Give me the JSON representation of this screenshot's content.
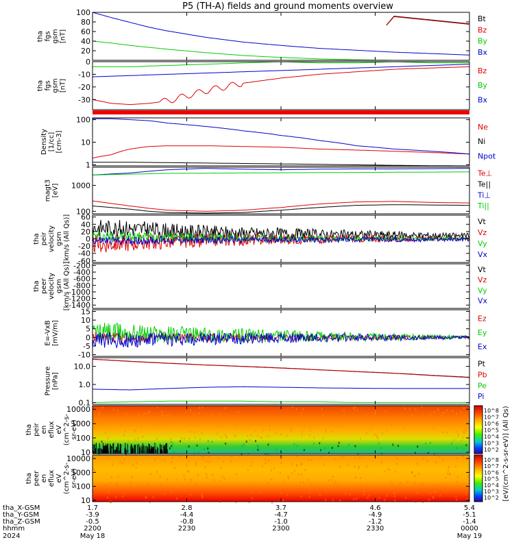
{
  "title": "P5 (TH-A) fields and ground moments overview",
  "colors": {
    "black": "#000000",
    "red": "#dd0000",
    "green": "#00cc00",
    "blue": "#0000cc"
  },
  "chart_data": [
    {
      "type": "line",
      "id": "panel1",
      "ylabel": [
        "tha",
        "fgs",
        "gsm",
        "[nT]"
      ],
      "ylim": [
        0,
        100
      ],
      "yticks": [
        "100",
        "80",
        "60",
        "40",
        "20"
      ],
      "ytick_values": [
        100,
        80,
        60,
        40,
        20
      ],
      "series": [
        {
          "name": "Bt",
          "color": "black",
          "x": [
            0,
            0.1,
            0.2,
            0.3,
            0.4,
            0.5,
            0.6,
            0.7,
            0.8,
            0.9,
            1.0
          ],
          "values": [
            0,
            0,
            0,
            0,
            0,
            0,
            0,
            0,
            92,
            84,
            76
          ]
        },
        {
          "name": "Bz",
          "color": "red",
          "x": [
            0,
            0.1,
            0.2,
            0.3,
            0.4,
            0.5,
            0.6,
            0.7,
            0.8,
            0.9,
            1.0
          ],
          "values": [
            0,
            0,
            0,
            0,
            0,
            0,
            0,
            0,
            91,
            83,
            75
          ]
        },
        {
          "name": "By",
          "color": "green",
          "x": [
            0,
            0.05,
            0.1,
            0.2,
            0.3,
            0.4,
            0.5,
            0.6,
            0.7,
            0.8,
            0.9,
            1.0
          ],
          "values": [
            40,
            36,
            31,
            23,
            16,
            10,
            6,
            3,
            1,
            0,
            0,
            0
          ]
        },
        {
          "name": "Bx",
          "color": "blue",
          "x": [
            0,
            0.05,
            0.1,
            0.15,
            0.2,
            0.3,
            0.4,
            0.5,
            0.6,
            0.7,
            0.8,
            0.9,
            1.0
          ],
          "values": [
            100,
            89,
            79,
            69,
            61,
            48,
            38,
            31,
            25,
            21,
            17,
            14,
            11
          ]
        }
      ]
    },
    {
      "type": "line",
      "id": "panel2",
      "ylabel": [
        "tha",
        "fgs",
        "gsm",
        "[nT]"
      ],
      "ylim": [
        -38,
        0
      ],
      "yticks": [
        "0",
        "-10",
        "-20",
        "-30"
      ],
      "ytick_values": [
        0,
        -10,
        -20,
        -30
      ],
      "series": [
        {
          "name": "Bz",
          "color": "red",
          "x": [
            0,
            0.05,
            0.1,
            0.15,
            0.2,
            0.25,
            0.3,
            0.35,
            0.4,
            0.5,
            0.6,
            0.7,
            0.8,
            0.9,
            1.0
          ],
          "values": [
            -30,
            -33,
            -34,
            -33,
            -31,
            -27,
            -23,
            -20,
            -17,
            -13,
            -10,
            -8,
            -6,
            -5,
            -4
          ]
        },
        {
          "name": "By",
          "color": "green",
          "x": [
            0,
            0.1,
            0.2,
            0.3,
            0.4,
            0.5,
            0.6,
            0.7,
            0.8,
            0.9,
            1.0
          ],
          "values": [
            -4,
            -4,
            -3,
            -2,
            -1,
            0,
            -1,
            -1,
            0,
            -1,
            -1
          ]
        },
        {
          "name": "Bx",
          "color": "blue",
          "x": [
            0,
            0.1,
            0.2,
            0.3,
            0.4,
            0.5,
            0.6,
            0.7,
            0.8,
            0.9,
            1.0
          ],
          "values": [
            -12,
            -11,
            -10,
            -9,
            -8,
            -7,
            -6,
            -5,
            -4,
            -3,
            -2
          ]
        }
      ]
    },
    {
      "type": "line",
      "id": "panel3",
      "log": true,
      "ylabel": [
        "Density",
        "[1/cc]",
        "[cm-3]"
      ],
      "ylim": [
        0.9,
        120
      ],
      "yticks": [
        "100",
        "10",
        "1"
      ],
      "ytick_values": [
        100,
        10,
        1
      ],
      "series": [
        {
          "name": "Ne",
          "color": "red",
          "x": [
            0,
            0.05,
            0.1,
            0.15,
            0.2,
            0.3,
            0.4,
            0.5,
            0.6,
            0.7,
            0.8,
            0.9,
            1.0
          ],
          "values": [
            2,
            2.8,
            5,
            6.5,
            7,
            7,
            6.5,
            6,
            5,
            4.5,
            4,
            3.5,
            3
          ]
        },
        {
          "name": "Ni",
          "color": "black",
          "x": [
            0,
            0.1,
            0.2,
            0.3,
            0.4,
            0.5,
            0.6,
            0.7,
            0.8,
            0.9,
            1.0
          ],
          "values": [
            1.3,
            1.3,
            1.25,
            1.2,
            1.15,
            1.1,
            1.05,
            1.0,
            0.95,
            0.92,
            0.9
          ]
        },
        {
          "name": "Npot",
          "color": "blue",
          "x": [
            0,
            0.05,
            0.1,
            0.15,
            0.2,
            0.3,
            0.4,
            0.5,
            0.6,
            0.7,
            0.8,
            0.9,
            1.0
          ],
          "values": [
            110,
            110,
            100,
            90,
            70,
            50,
            32,
            20,
            12,
            7,
            5,
            4,
            3
          ]
        }
      ]
    },
    {
      "type": "line",
      "id": "panel4",
      "log": true,
      "ylabel": [
        "magt3",
        "[eV]"
      ],
      "ylim": [
        80,
        5000
      ],
      "yticks": [
        "1000",
        "100"
      ],
      "ytick_values": [
        1000,
        100
      ],
      "series": [
        {
          "name": "Te⊥",
          "color": "red",
          "x": [
            0,
            0.05,
            0.1,
            0.15,
            0.2,
            0.3,
            0.4,
            0.5,
            0.6,
            0.7,
            0.8,
            0.9,
            1.0
          ],
          "values": [
            250,
            200,
            160,
            130,
            110,
            100,
            110,
            140,
            190,
            230,
            240,
            220,
            210
          ]
        },
        {
          "name": "Te||",
          "color": "black",
          "x": [
            0,
            0.05,
            0.1,
            0.15,
            0.2,
            0.3,
            0.4,
            0.5,
            0.6,
            0.7,
            0.8,
            0.9,
            1.0
          ],
          "values": [
            160,
            140,
            120,
            100,
            90,
            85,
            90,
            110,
            140,
            170,
            180,
            175,
            170
          ]
        },
        {
          "name": "Ti⊥",
          "color": "blue",
          "x": [
            0,
            0.1,
            0.2,
            0.3,
            0.4,
            0.5,
            0.6,
            0.7,
            0.8,
            0.9,
            1.0
          ],
          "values": [
            2500,
            3000,
            4000,
            4500,
            4200,
            4000,
            4200,
            4300,
            4300,
            4400,
            4500
          ]
        },
        {
          "name": "Ti||",
          "color": "green",
          "x": [
            0,
            0.1,
            0.2,
            0.3,
            0.4,
            0.5,
            0.6,
            0.7,
            0.8,
            0.9,
            1.0
          ],
          "values": [
            2500,
            2700,
            2900,
            2950,
            3000,
            3050,
            3100,
            3150,
            3200,
            3250,
            3300
          ]
        }
      ]
    },
    {
      "type": "line",
      "id": "panel5",
      "ylabel": [
        "tha",
        "peir",
        "velocity",
        "gsm",
        "[km/s (All Qs)]"
      ],
      "ylim": [
        -65,
        65
      ],
      "yticks": [
        "60",
        "40",
        "20",
        "0",
        "-20",
        "-40",
        "-60"
      ],
      "ytick_values": [
        60,
        40,
        20,
        0,
        -20,
        -40,
        -60
      ],
      "series": [
        {
          "name": "Vt",
          "color": "black",
          "noise": [
            25,
            8
          ],
          "x": [
            0,
            0.1,
            0.2,
            0.3,
            0.4,
            0.5,
            0.6,
            0.7,
            0.8,
            0.9,
            1.0
          ],
          "values": [
            30,
            28,
            22,
            18,
            15,
            14,
            12,
            11,
            10,
            9,
            8
          ]
        },
        {
          "name": "Vz",
          "color": "red",
          "noise": [
            25,
            4
          ],
          "x": [
            0,
            0.1,
            0.2,
            0.3,
            0.4,
            0.5,
            0.6,
            0.7,
            0.8,
            0.9,
            1.0
          ],
          "values": [
            -15,
            -12,
            -8,
            -5,
            -3,
            -2,
            -1,
            0,
            0,
            0,
            0
          ]
        },
        {
          "name": "Vy",
          "color": "green",
          "noise": [
            15,
            4
          ],
          "x": [
            0,
            0.1,
            0.2,
            0.3,
            0.4,
            0.5,
            0.6,
            0.7,
            0.8,
            0.9,
            1.0
          ],
          "values": [
            8,
            6,
            5,
            3,
            2,
            1,
            0,
            0,
            0,
            0,
            0
          ]
        },
        {
          "name": "Vx",
          "color": "blue",
          "noise": [
            12,
            5
          ],
          "x": [
            0,
            0.1,
            0.2,
            0.3,
            0.4,
            0.5,
            0.6,
            0.7,
            0.8,
            0.9,
            1.0
          ],
          "values": [
            -5,
            -5,
            -4,
            -3,
            -3,
            -2,
            -2,
            -2,
            -2,
            -2,
            -2
          ]
        }
      ]
    },
    {
      "type": "line",
      "id": "panel6",
      "ylabel": [
        "tha",
        "peer",
        "velocity",
        "gsm",
        "[km/s (All Qs)]"
      ],
      "ylim": [
        -1500,
        -150
      ],
      "yticks": [
        "-200",
        "-400",
        "-600",
        "-800",
        "-1000",
        "-1200",
        "-1400"
      ],
      "ytick_values": [
        -200,
        -400,
        -600,
        -800,
        -1000,
        -1200,
        -1400
      ],
      "series": [
        {
          "name": "Vt",
          "color": "black",
          "x": [],
          "values": []
        },
        {
          "name": "Vz",
          "color": "red",
          "x": [],
          "values": []
        },
        {
          "name": "Vy",
          "color": "green",
          "x": [],
          "values": []
        },
        {
          "name": "Vx",
          "color": "blue",
          "x": [],
          "values": []
        }
      ]
    },
    {
      "type": "line",
      "id": "panel7",
      "ylabel": [
        "E=-VxB",
        "[mV/m]"
      ],
      "ylim": [
        -11,
        16
      ],
      "yticks": [
        "15",
        "10",
        "5",
        "0",
        "-5",
        "-10"
      ],
      "ytick_values": [
        15,
        10,
        5,
        0,
        -5,
        -10
      ],
      "series": [
        {
          "name": "Ez",
          "color": "red",
          "noise": [
            3,
            0.8
          ],
          "x": [
            0,
            0.1,
            0.2,
            0.3,
            0.4,
            0.5,
            0.6,
            0.7,
            0.8,
            0.9,
            1.0
          ],
          "values": [
            0,
            0,
            0,
            0,
            0,
            0,
            0,
            0,
            0,
            0,
            0
          ]
        },
        {
          "name": "Ey",
          "color": "green",
          "noise": [
            6,
            1
          ],
          "x": [
            0,
            0.1,
            0.2,
            0.3,
            0.4,
            0.5,
            0.6,
            0.7,
            0.8,
            0.9,
            1.0
          ],
          "values": [
            3,
            2.5,
            2,
            1.5,
            1,
            0.8,
            0.5,
            0.4,
            0.3,
            0.2,
            0.2
          ]
        },
        {
          "name": "Ex",
          "color": "blue",
          "noise": [
            5,
            1
          ],
          "x": [
            0,
            0.1,
            0.2,
            0.3,
            0.4,
            0.5,
            0.6,
            0.7,
            0.8,
            0.9,
            1.0
          ],
          "values": [
            -2,
            -1.5,
            -1,
            -0.8,
            -0.5,
            -0.4,
            -0.3,
            -0.2,
            -0.2,
            -0.1,
            -0.1
          ]
        }
      ]
    },
    {
      "type": "line",
      "id": "panel8",
      "log": true,
      "ylabel": [
        "Pressure",
        "[nPa]"
      ],
      "ylim": [
        0.08,
        30
      ],
      "yticks": [
        "10.0",
        "1.0",
        "0.1"
      ],
      "ytick_values": [
        10,
        1,
        0.1
      ],
      "series": [
        {
          "name": "Pt",
          "color": "black",
          "x": [
            0,
            0.1,
            0.2,
            0.3,
            0.4,
            0.5,
            0.6,
            0.7,
            0.8,
            0.9,
            1.0
          ],
          "values": [
            25,
            19,
            15,
            12,
            10,
            8.2,
            6.5,
            5.2,
            4.2,
            3.2,
            2.5
          ]
        },
        {
          "name": "Pb",
          "color": "red",
          "x": [
            0,
            0.1,
            0.2,
            0.3,
            0.4,
            0.5,
            0.6,
            0.7,
            0.8,
            0.9,
            1.0
          ],
          "values": [
            24.5,
            18.6,
            14.7,
            11.8,
            9.8,
            8.0,
            6.4,
            5.1,
            4.1,
            3.1,
            2.4
          ]
        },
        {
          "name": "Pe",
          "color": "green",
          "x": [
            0,
            0.1,
            0.2,
            0.3,
            0.4,
            0.5,
            0.6,
            0.7,
            0.8,
            0.9,
            1.0
          ],
          "values": [
            0.1,
            0.11,
            0.12,
            0.12,
            0.12,
            0.11,
            0.11,
            0.1,
            0.1,
            0.1,
            0.1
          ]
        },
        {
          "name": "Pi",
          "color": "blue",
          "x": [
            0,
            0.1,
            0.2,
            0.3,
            0.4,
            0.5,
            0.6,
            0.7,
            0.8,
            0.9,
            1.0
          ],
          "values": [
            0.55,
            0.5,
            0.6,
            0.7,
            0.75,
            0.7,
            0.65,
            0.62,
            0.6,
            0.6,
            0.6
          ]
        }
      ]
    },
    {
      "type": "heatmap",
      "id": "panel9",
      "log": true,
      "ylabel": [
        "tha",
        "peir",
        "en",
        "eflux",
        "eV",
        "(cm^2-s-",
        "sr-eV)"
      ],
      "yticks": [
        "10000",
        "1000",
        "100",
        "10"
      ],
      "ytick_values": [
        10000,
        1000,
        100,
        10
      ]
    },
    {
      "type": "heatmap",
      "id": "panel10",
      "log": true,
      "ylabel": [
        "tha",
        "peer",
        "en",
        "eflux",
        "eV",
        "(cm^2-s-",
        "sr-eV)"
      ],
      "yticks": [
        "10000",
        "1000",
        "100",
        "10"
      ],
      "ytick_values": [
        10000,
        1000,
        100,
        10
      ]
    }
  ],
  "colorbar": {
    "labels_top": [
      "10^8",
      "10^7",
      "10^6",
      "10^5",
      "10^4",
      "10^3",
      "10^2"
    ],
    "labels_bottom": [
      "10^8",
      "10^7",
      "10^6",
      "10^5",
      "10^4",
      "10^3",
      "10^2"
    ],
    "label": "[eV/(cm^2-s-sr-eV)] (All Qs)"
  },
  "x_axis": {
    "row_labels": [
      "tha_X-GSM",
      "tha_Y-GSM",
      "tha_Z-GSM",
      "hhmm",
      "2024"
    ],
    "ticks": [
      {
        "x": "1.7",
        "y": "-3.9",
        "z": "-0.5",
        "hhmm": "2200",
        "date": "May 18"
      },
      {
        "x": "2.8",
        "y": "-4.4",
        "z": "-0.8",
        "hhmm": "2230",
        "date": ""
      },
      {
        "x": "3.7",
        "y": "-4.7",
        "z": "-1.0",
        "hhmm": "2300",
        "date": ""
      },
      {
        "x": "4.6",
        "y": "-4.9",
        "z": "-1.2",
        "hhmm": "2330",
        "date": ""
      },
      {
        "x": "5.4",
        "y": "-5.1",
        "z": "-1.4",
        "hhmm": "0000",
        "date": "May 19"
      }
    ]
  }
}
